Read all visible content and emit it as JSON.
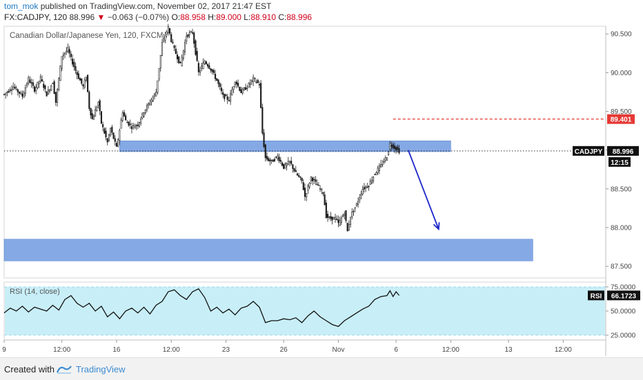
{
  "header": {
    "author": "tom_mok",
    "published_text": "published on TradingView.com, November 02, 2017 21:47 EST",
    "symbol": "FX:CADJPY, 120",
    "price": "88.996",
    "change_arrow": "▼",
    "change": "−0.063 (−0.07%)",
    "open_label": "O:",
    "open": "88.958",
    "high_label": "H:",
    "high": "89.000",
    "low_label": "L:",
    "low": "88.910",
    "close_label": "C:",
    "close": "88.996"
  },
  "footer": {
    "created_with": "Created with",
    "brand": "TradingView"
  },
  "colors": {
    "candle": "#1c1c1c",
    "zone": "#6f9ae0",
    "arrow": "#1a24c8",
    "red": "#e53935",
    "rsi_fill": "#c8eef8",
    "rsi_band": "#9fd8e8",
    "axis_text": "#444444"
  },
  "chart_data": [
    {
      "type": "candlestick",
      "title": "Canadian Dollar/Japanese Yen, 120, FXCM",
      "ylim": [
        87.35,
        90.6
      ],
      "y_ticks": [
        "90.500",
        "90.000",
        "89.500",
        "89.000",
        "88.500",
        "88.000",
        "87.500"
      ],
      "x_ticks": [
        "9",
        "12:00",
        "16",
        "12:00",
        "23",
        "26",
        "Nov",
        "6",
        "12:00",
        "13",
        "12:00"
      ],
      "price_tags": [
        {
          "symbol": "CADJPY",
          "value": "88.996"
        },
        {
          "symbol": "",
          "value": "12:15"
        },
        {
          "symbol": "",
          "value": "89.401"
        }
      ],
      "path_points": [
        [
          0,
          89.72
        ],
        [
          3,
          89.82
        ],
        [
          6,
          89.7
        ],
        [
          8,
          89.92
        ],
        [
          10,
          89.78
        ],
        [
          12,
          89.93
        ],
        [
          14,
          89.72
        ],
        [
          16,
          89.88
        ],
        [
          17,
          89.62
        ],
        [
          19,
          90.22
        ],
        [
          21,
          90.3
        ],
        [
          22,
          90.18
        ],
        [
          24,
          89.98
        ],
        [
          26,
          89.82
        ],
        [
          27,
          89.95
        ],
        [
          28,
          89.55
        ],
        [
          29,
          89.4
        ],
        [
          31,
          89.62
        ],
        [
          32,
          89.35
        ],
        [
          34,
          89.1
        ],
        [
          35,
          89.28
        ],
        [
          37,
          89.03
        ],
        [
          39,
          89.5
        ],
        [
          40,
          89.38
        ],
        [
          42,
          89.3
        ],
        [
          44,
          89.33
        ],
        [
          46,
          89.5
        ],
        [
          48,
          89.62
        ],
        [
          50,
          89.75
        ],
        [
          52,
          90.38
        ],
        [
          54,
          90.58
        ],
        [
          55,
          90.42
        ],
        [
          56,
          90.3
        ],
        [
          58,
          90.1
        ],
        [
          60,
          90.48
        ],
        [
          62,
          90.52
        ],
        [
          64,
          90.0
        ],
        [
          66,
          90.15
        ],
        [
          68,
          90.05
        ],
        [
          70,
          89.9
        ],
        [
          72,
          89.7
        ],
        [
          74,
          89.65
        ],
        [
          76,
          89.9
        ],
        [
          78,
          89.75
        ],
        [
          80,
          89.82
        ],
        [
          82,
          89.92
        ],
        [
          84,
          89.85
        ],
        [
          85,
          89.22
        ],
        [
          86,
          88.9
        ],
        [
          88,
          88.85
        ],
        [
          90,
          88.92
        ],
        [
          92,
          88.78
        ],
        [
          94,
          88.85
        ],
        [
          96,
          88.7
        ],
        [
          98,
          88.6
        ],
        [
          99,
          88.4
        ],
        [
          101,
          88.65
        ],
        [
          103,
          88.55
        ],
        [
          105,
          88.45
        ],
        [
          106,
          88.15
        ],
        [
          107,
          88.12
        ],
        [
          109,
          88.12
        ],
        [
          110,
          88.05
        ],
        [
          111,
          88.12
        ],
        [
          112,
          88.2
        ],
        [
          113,
          87.95
        ],
        [
          114,
          88.15
        ],
        [
          116,
          88.3
        ],
        [
          118,
          88.5
        ],
        [
          120,
          88.55
        ],
        [
          122,
          88.7
        ],
        [
          124,
          88.8
        ],
        [
          126,
          88.92
        ],
        [
          127,
          89.08
        ],
        [
          128,
          89.05
        ],
        [
          129,
          89.02
        ],
        [
          130,
          88.99
        ]
      ],
      "zones": [
        {
          "x0": 38,
          "x1": 147,
          "y0": 88.98,
          "y1": 89.12
        },
        {
          "x0": 0,
          "x1": 174,
          "y0": 87.57,
          "y1": 87.85
        }
      ],
      "support_level": 88.99,
      "resistance_level": 89.401,
      "arrow": {
        "from": [
          133,
          89.0
        ],
        "to": [
          143,
          87.98
        ]
      }
    },
    {
      "type": "line",
      "title": "RSI (14, close)",
      "ylim": [
        20,
        80
      ],
      "upper_band": 75,
      "lower_band": 25,
      "y_ticks": [
        "75.0000",
        "50.0000",
        "25.0000"
      ],
      "last_value_label": "RSI",
      "last_value": "66.1723",
      "series": [
        {
          "x": [
            0,
            2,
            4,
            6,
            8,
            10,
            12,
            14,
            16,
            18,
            20,
            22,
            24,
            26,
            28,
            30,
            32,
            34,
            36,
            38,
            40,
            42,
            44,
            46,
            48,
            50,
            52,
            54,
            56,
            58,
            60,
            62,
            64,
            66,
            68,
            70,
            72,
            74,
            76,
            78,
            80,
            82,
            84,
            86,
            88,
            90,
            92,
            94,
            96,
            98,
            100,
            102,
            104,
            106,
            108,
            110,
            112,
            114,
            116,
            118,
            120,
            122,
            124,
            126,
            127,
            128,
            129,
            130
          ],
          "values": [
            48,
            53,
            50,
            55,
            49,
            54,
            52,
            50,
            56,
            51,
            62,
            66,
            58,
            54,
            58,
            50,
            55,
            44,
            49,
            42,
            50,
            53,
            48,
            54,
            47,
            56,
            60,
            70,
            72,
            66,
            62,
            70,
            73,
            64,
            50,
            54,
            48,
            52,
            46,
            53,
            55,
            60,
            54,
            38,
            40,
            40,
            42,
            41,
            43,
            38,
            45,
            50,
            44,
            40,
            36,
            34,
            40,
            44,
            48,
            52,
            55,
            62,
            65,
            66,
            71,
            65,
            70,
            66.17
          ]
        }
      ]
    }
  ]
}
